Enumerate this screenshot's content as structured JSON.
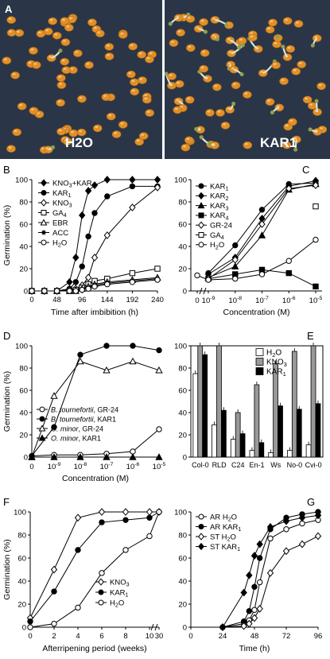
{
  "figure": {
    "panel_letters": [
      "A",
      "B",
      "C",
      "D",
      "E",
      "F",
      "G"
    ],
    "photo_labels": {
      "left": "H2O",
      "right": "KAR1"
    },
    "seed_color": "#e0902a",
    "background_color": "#2a3648",
    "y_axis_label": "Germination (%)"
  },
  "chart_data": [
    {
      "panel": "B",
      "type": "line",
      "xlabel": "Time after imbibition (h)",
      "ylabel": "Germination (%)",
      "xlim": [
        0,
        240
      ],
      "ylim": [
        0,
        100
      ],
      "xticks": [
        0,
        48,
        96,
        144,
        192,
        240
      ],
      "yticks": [
        0,
        20,
        40,
        60,
        80,
        100
      ],
      "legend_position": "top-left",
      "series": [
        {
          "name": "KNO3+KAR1",
          "marker": "filled-diamond",
          "x": [
            0,
            24,
            48,
            72,
            84,
            96,
            108,
            120,
            144,
            192,
            240
          ],
          "y": [
            0,
            0,
            0,
            8,
            30,
            68,
            90,
            95,
            100,
            100,
            100
          ]
        },
        {
          "name": "KAR1",
          "marker": "filled-circle",
          "x": [
            0,
            24,
            48,
            72,
            84,
            96,
            108,
            120,
            144,
            192,
            240
          ],
          "y": [
            0,
            0,
            0,
            2,
            8,
            22,
            49,
            70,
            85,
            94,
            94
          ]
        },
        {
          "name": "KNO3",
          "marker": "open-diamond",
          "x": [
            0,
            24,
            48,
            72,
            84,
            96,
            108,
            120,
            144,
            192,
            240
          ],
          "y": [
            0,
            0,
            0,
            1,
            2,
            5,
            12,
            30,
            50,
            75,
            93
          ]
        },
        {
          "name": "GA4",
          "marker": "open-square",
          "x": [
            0,
            24,
            48,
            72,
            84,
            96,
            108,
            120,
            144,
            192,
            240
          ],
          "y": [
            0,
            0,
            0,
            0,
            1,
            3,
            6,
            9,
            11,
            16,
            20
          ]
        },
        {
          "name": "EBR",
          "marker": "open-triangle",
          "x": [
            0,
            24,
            48,
            72,
            84,
            96,
            108,
            120,
            144,
            192,
            240
          ],
          "y": [
            0,
            0,
            0,
            0,
            0,
            2,
            4,
            6,
            8,
            10,
            12
          ]
        },
        {
          "name": "ACC",
          "marker": "star",
          "x": [
            0,
            24,
            48,
            72,
            84,
            96,
            108,
            120,
            144,
            192,
            240
          ],
          "y": [
            0,
            0,
            0,
            0,
            0,
            1,
            3,
            5,
            7,
            9,
            11
          ]
        },
        {
          "name": "H2O",
          "marker": "open-circle",
          "x": [
            0,
            24,
            48,
            72,
            84,
            96,
            108,
            120,
            144,
            192,
            240
          ],
          "y": [
            0,
            0,
            0,
            0,
            0,
            1,
            2,
            4,
            6,
            8,
            10
          ]
        }
      ]
    },
    {
      "panel": "C",
      "type": "line",
      "xlabel": "Concentration (M)",
      "ylabel": "",
      "xscale": "log",
      "xlim": [
        -9.6,
        -4.8
      ],
      "ylim": [
        0,
        100
      ],
      "xtick_labels": [
        "0",
        "10-9",
        "10-8",
        "10-7",
        "10-6",
        "10-5"
      ],
      "yticks": [
        0,
        20,
        40,
        60,
        80,
        100
      ],
      "legend_position": "left",
      "series": [
        {
          "name": "KAR1",
          "marker": "filled-circle",
          "x": [
            1e-09,
            1e-08,
            1e-07,
            1e-06,
            1e-05
          ],
          "y": [
            16,
            41,
            73,
            96,
            97
          ]
        },
        {
          "name": "KAR2",
          "marker": "filled-diamond",
          "x": [
            1e-09,
            1e-08,
            1e-07,
            1e-06,
            1e-05
          ],
          "y": [
            15,
            30,
            65,
            94,
            99
          ]
        },
        {
          "name": "KAR3",
          "marker": "filled-triangle",
          "x": [
            1e-09,
            1e-08,
            1e-07,
            1e-06,
            1e-05
          ],
          "y": [
            12,
            22,
            50,
            91,
            96
          ]
        },
        {
          "name": "KAR4",
          "marker": "filled-square",
          "x": [
            1e-09,
            1e-08,
            1e-07,
            1e-06,
            1e-05
          ],
          "y": [
            11,
            15,
            19,
            16,
            4
          ]
        },
        {
          "name": "GR-24",
          "marker": "open-diamond",
          "x": [
            1e-09,
            1e-08,
            1e-07,
            1e-06,
            1e-05
          ],
          "y": [
            11,
            28,
            60,
            92,
            95
          ]
        },
        {
          "name": "GA4",
          "marker": "open-square",
          "x": [
            1e-05
          ],
          "y": [
            76
          ]
        },
        {
          "name": "H2O",
          "marker": "open-circle",
          "x": [
            0,
            1e-09,
            1e-08,
            1e-07,
            1e-06,
            1e-05
          ],
          "y": [
            14,
            10,
            11,
            15,
            27,
            46
          ]
        }
      ]
    },
    {
      "panel": "D",
      "type": "line",
      "xlabel": "Concentration (M)",
      "ylabel": "Germination (%)",
      "xscale": "log",
      "ylim": [
        0,
        100
      ],
      "xtick_labels": [
        "0",
        "10-9",
        "10-8",
        "10-7",
        "10-6",
        "10-5"
      ],
      "yticks": [
        0,
        20,
        40,
        60,
        80,
        100
      ],
      "legend_position": "bottom-left",
      "series": [
        {
          "name": "B. tournefortii, GR-24",
          "marker": "open-circle",
          "x": [
            0,
            1e-09,
            1e-08,
            1e-07,
            1e-06,
            1e-05
          ],
          "y": [
            1,
            2,
            2,
            3,
            5,
            25
          ]
        },
        {
          "name": "B. tournefortii, KAR1",
          "marker": "filled-circle",
          "x": [
            0,
            1e-09,
            1e-08,
            1e-07,
            1e-06,
            1e-05
          ],
          "y": [
            1,
            27,
            92,
            100,
            100,
            96
          ]
        },
        {
          "name": "O. minor, GR-24",
          "marker": "open-triangle",
          "x": [
            0,
            1e-09,
            1e-08,
            1e-07,
            1e-06,
            1e-05
          ],
          "y": [
            0,
            55,
            86,
            78,
            86,
            78
          ]
        },
        {
          "name": "O. minor, KAR1",
          "marker": "filled-triangle",
          "x": [
            0,
            1e-09,
            1e-08,
            1e-07,
            1e-06,
            1e-05
          ],
          "y": [
            0,
            0,
            0,
            0,
            0,
            0
          ]
        }
      ]
    },
    {
      "panel": "E",
      "type": "bar",
      "ylim": [
        0,
        100
      ],
      "yticks": [
        0,
        20,
        40,
        60,
        80,
        100
      ],
      "categories": [
        "Col-0",
        "RLD",
        "C24",
        "En-1",
        "Ws",
        "No-0",
        "Cvi-0"
      ],
      "legend_position": "top-right",
      "series": [
        {
          "name": "H2O",
          "color": "#ffffff",
          "values": [
            75,
            29,
            16,
            6,
            4,
            6,
            11
          ]
        },
        {
          "name": "KNO3",
          "color": "#999999",
          "values": [
            100,
            100,
            40,
            65,
            84,
            95,
            100
          ]
        },
        {
          "name": "KAR1",
          "color": "#000000",
          "values": [
            92,
            42,
            21,
            13,
            46,
            43,
            48
          ]
        }
      ]
    },
    {
      "panel": "F",
      "type": "line",
      "xlabel": "Afterripening period (weeks)",
      "ylabel": "Germination (%)",
      "xticks": [
        0,
        2,
        4,
        6,
        8,
        10,
        30
      ],
      "ylim": [
        0,
        100
      ],
      "yticks": [
        0,
        20,
        40,
        60,
        80,
        100
      ],
      "legend_position": "bottom-right",
      "series": [
        {
          "name": "KNO3",
          "marker": "open-diamond",
          "x": [
            0,
            2,
            4,
            6,
            8,
            10,
            30
          ],
          "y": [
            8,
            50,
            95,
            100,
            100,
            100,
            100
          ]
        },
        {
          "name": "KAR1",
          "marker": "filled-circle",
          "x": [
            0,
            2,
            4,
            6,
            8,
            10,
            30
          ],
          "y": [
            5,
            31,
            67,
            91,
            93,
            95,
            100
          ]
        },
        {
          "name": "H2O",
          "marker": "open-circle",
          "x": [
            0,
            2,
            4,
            6,
            8,
            10,
            30
          ],
          "y": [
            0,
            3,
            17,
            47,
            67,
            79,
            100
          ]
        }
      ]
    },
    {
      "panel": "G",
      "type": "line",
      "xlabel": "Time (h)",
      "ylabel": "",
      "xlim": [
        0,
        96
      ],
      "ylim": [
        0,
        100
      ],
      "xticks": [
        0,
        24,
        48,
        72,
        96
      ],
      "yticks": [
        0,
        20,
        40,
        60,
        80,
        100
      ],
      "legend_position": "top-left",
      "series": [
        {
          "name": "AR H2O",
          "marker": "open-circle",
          "x": [
            24,
            40,
            44,
            48,
            52,
            60,
            72,
            84,
            96
          ],
          "y": [
            0,
            3,
            6,
            15,
            39,
            77,
            85,
            90,
            93
          ]
        },
        {
          "name": "AR KAR1",
          "marker": "filled-circle",
          "x": [
            24,
            40,
            44,
            48,
            52,
            60,
            72,
            84,
            96
          ],
          "y": [
            0,
            5,
            14,
            35,
            60,
            85,
            95,
            98,
            100
          ]
        },
        {
          "name": "ST H2O",
          "marker": "open-diamond",
          "x": [
            24,
            40,
            44,
            48,
            52,
            60,
            72,
            84,
            96
          ],
          "y": [
            0,
            1,
            3,
            8,
            16,
            47,
            66,
            72,
            79
          ]
        },
        {
          "name": "ST KAR1",
          "marker": "filled-diamond",
          "x": [
            24,
            40,
            44,
            48,
            52,
            60,
            72,
            84,
            96
          ],
          "y": [
            0,
            30,
            45,
            62,
            72,
            87,
            92,
            95,
            97
          ]
        }
      ]
    }
  ]
}
